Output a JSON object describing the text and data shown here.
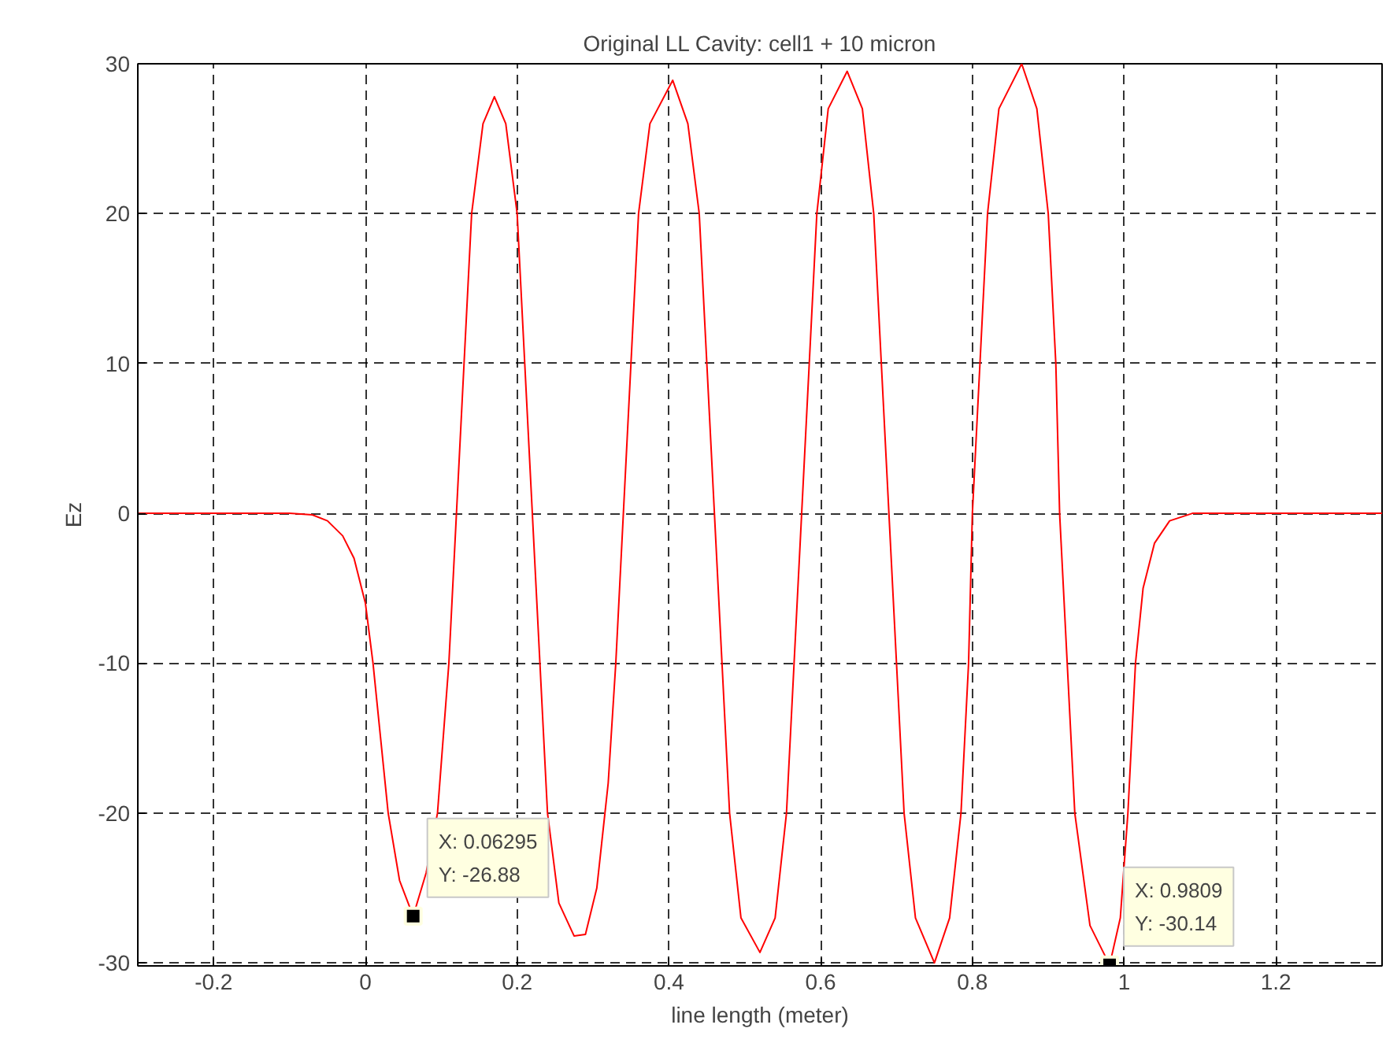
{
  "chart_data": {
    "type": "line",
    "title": "Original LL Cavity: cell1 + 10 micron",
    "xlabel": "line length (meter)",
    "ylabel": "Ez",
    "xlim": [
      -0.3,
      1.34
    ],
    "ylim": [
      -30.2,
      30
    ],
    "xticks": [
      -0.2,
      0,
      0.2,
      0.4,
      0.6,
      0.8,
      1,
      1.2
    ],
    "yticks": [
      -30,
      -20,
      -10,
      0,
      10,
      20,
      30
    ],
    "grid": true,
    "marker": "none",
    "line_style": "solid",
    "series": [
      {
        "color": "#ff0000",
        "x": [
          -0.3,
          -0.2,
          -0.1,
          -0.07,
          -0.05,
          -0.03,
          -0.015,
          0,
          0.01,
          0.02,
          0.03,
          0.045,
          0.06295,
          0.08,
          0.095,
          0.11,
          0.12,
          0.13,
          0.14,
          0.155,
          0.17,
          0.185,
          0.2,
          0.21,
          0.22,
          0.23,
          0.24,
          0.255,
          0.275,
          0.29,
          0.305,
          0.32,
          0.33,
          0.34,
          0.35,
          0.36,
          0.375,
          0.405,
          0.425,
          0.44,
          0.45,
          0.46,
          0.47,
          0.48,
          0.495,
          0.52,
          0.54,
          0.555,
          0.565,
          0.575,
          0.585,
          0.595,
          0.61,
          0.635,
          0.655,
          0.67,
          0.68,
          0.69,
          0.7,
          0.71,
          0.725,
          0.75,
          0.77,
          0.785,
          0.795,
          0.8,
          0.81,
          0.82,
          0.835,
          0.865,
          0.885,
          0.9,
          0.91,
          0.915,
          0.925,
          0.935,
          0.955,
          0.9809,
          0.995,
          1.005,
          1.015,
          1.025,
          1.04,
          1.06,
          1.09,
          1.2,
          1.34
        ],
        "values": [
          0,
          0,
          0,
          -0.1,
          -0.5,
          -1.5,
          -3,
          -6,
          -10,
          -15,
          -20,
          -24.5,
          -26.88,
          -24,
          -20,
          -10,
          0,
          10,
          20,
          26,
          27.8,
          26,
          20,
          10,
          0,
          -10,
          -20,
          -26,
          -28.2,
          -28.1,
          -25,
          -18,
          -10,
          0,
          10,
          20,
          26,
          28.9,
          26,
          20,
          10,
          0,
          -10,
          -20,
          -27,
          -29.3,
          -27,
          -20,
          -10,
          0,
          10,
          20,
          27,
          29.5,
          27,
          20,
          10,
          0,
          -10,
          -20,
          -27,
          -30,
          -27,
          -20,
          -10,
          0,
          10,
          20,
          27,
          30,
          27,
          20,
          10,
          0,
          -10,
          -20,
          -27.5,
          -30.14,
          -27,
          -20,
          -10,
          -5,
          -2,
          -0.5,
          0,
          0,
          0
        ]
      }
    ],
    "annotations": [
      {
        "text": "X: 0.06295\nY: -26.88",
        "x": 0.06295,
        "y": -26.88
      },
      {
        "text": "X: 0.9809\nY: -30.14",
        "x": 0.9809,
        "y": -30.14
      }
    ]
  }
}
